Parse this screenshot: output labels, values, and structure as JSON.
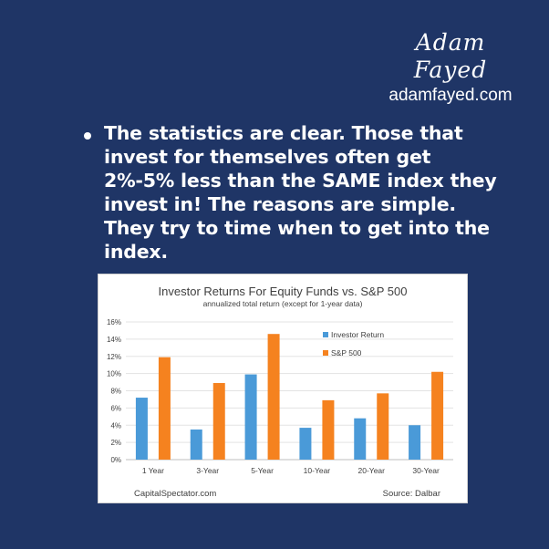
{
  "brand": {
    "signature": "Adam Fayed",
    "website": "adamfayed.com"
  },
  "bullet": {
    "text": "The statistics are clear. Those that invest for themselves often get 2%-5% less than the SAME index they invest in! The reasons are simple. They try to time when to get into the index."
  },
  "chart_data": {
    "type": "bar",
    "title": "Investor Returns For Equity Funds vs. S&P 500",
    "subtitle": "annualized total return (except for 1-year data)",
    "categories": [
      "1 Year",
      "3-Year",
      "5-Year",
      "10-Year",
      "20-Year",
      "30-Year"
    ],
    "series": [
      {
        "name": "Investor Return",
        "color": "#4a9ad8",
        "values": [
          7.2,
          3.5,
          9.9,
          3.7,
          4.8,
          4.0
        ]
      },
      {
        "name": "S&P 500",
        "color": "#f5821f",
        "values": [
          11.9,
          8.9,
          14.6,
          6.9,
          7.7,
          10.2
        ]
      }
    ],
    "ylim": [
      0,
      16
    ],
    "yticks": [
      "0%",
      "2%",
      "4%",
      "6%",
      "8%",
      "10%",
      "12%",
      "14%",
      "16%"
    ],
    "grid": true,
    "legend_position": "right",
    "footer_left": "CapitalSpectator.com",
    "footer_right": "Source: Dalbar"
  }
}
